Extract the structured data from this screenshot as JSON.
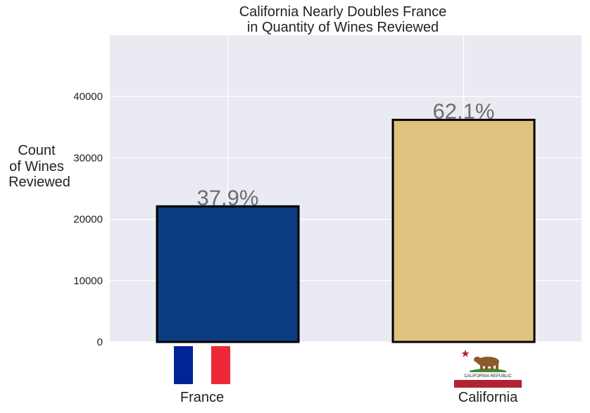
{
  "chart_data": {
    "type": "bar",
    "title_lines": [
      "California Nearly Doubles France",
      "in Quantity of Wines Reviewed"
    ],
    "ylabel_lines": [
      "Count",
      "of Wines",
      "Reviewed"
    ],
    "xlabel": "",
    "categories": [
      "France",
      "California"
    ],
    "values": [
      22100,
      36200
    ],
    "percent_labels": [
      "37.9%",
      "62.1%"
    ],
    "bar_colors": [
      "#0a3d7f",
      "#dfc27e"
    ],
    "ylim": [
      0,
      50000
    ],
    "yticks": [
      0,
      10000,
      20000,
      30000,
      40000
    ],
    "ytick_labels": [
      "0",
      "10000",
      "20000",
      "30000",
      "40000"
    ],
    "grid": true,
    "background": "#eaeaf2",
    "bar_edge_color": "#000000",
    "data_label_color": "#6e6e6e"
  },
  "flags": {
    "france_colors": [
      "#002395",
      "#ffffff",
      "#ed2939"
    ],
    "california_text": "CALIFORNIA REPUBLIC",
    "california_colors": {
      "star": "#b22234",
      "stripe": "#b22234",
      "bear": "#8b5a2b",
      "grass": "#3c8c3c"
    }
  }
}
